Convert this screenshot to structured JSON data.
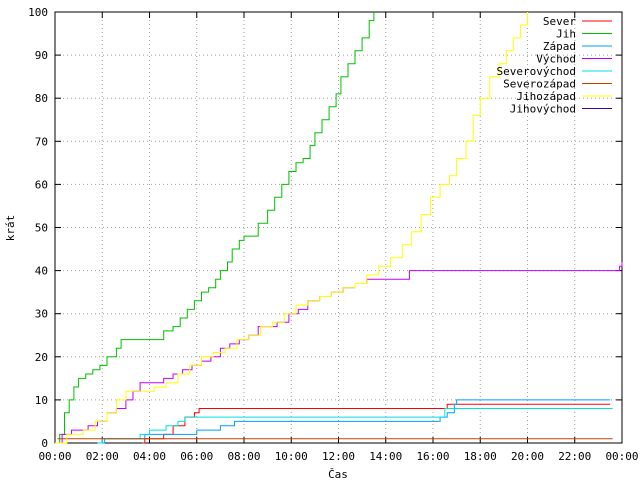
{
  "chart_data": {
    "type": "line",
    "title": "",
    "xlabel": "Čas",
    "ylabel": "krát",
    "xlim": [
      0,
      24
    ],
    "ylim": [
      0,
      100
    ],
    "xticks": [
      "00:00",
      "02:00",
      "04:00",
      "06:00",
      "08:00",
      "10:00",
      "12:00",
      "14:00",
      "16:00",
      "18:00",
      "20:00",
      "22:00",
      "00:00"
    ],
    "yticks": [
      "0",
      "10",
      "20",
      "30",
      "40",
      "50",
      "60",
      "70",
      "80",
      "90",
      "100"
    ],
    "grid": true,
    "legend_position": "top-right",
    "series": [
      {
        "name": "Sever",
        "color": "#ff0000",
        "x": [
          0,
          3.7,
          3.8,
          4.6,
          5.0,
          5.5,
          5.9,
          6.1,
          16.6,
          16.8,
          23.5
        ],
        "y": [
          null,
          0,
          1,
          2,
          4,
          6,
          7,
          8,
          9,
          9,
          9
        ]
      },
      {
        "name": "Jih",
        "color": "#00c000",
        "x": [
          0,
          0.2,
          0.4,
          0.6,
          0.8,
          1.0,
          1.3,
          1.6,
          1.9,
          2.2,
          2.6,
          2.8,
          3.5,
          4.2,
          4.6,
          5.0,
          5.3,
          5.6,
          5.9,
          6.2,
          6.5,
          6.8,
          7.0,
          7.3,
          7.5,
          7.8,
          8.0,
          8.3,
          8.6,
          9.0,
          9.3,
          9.6,
          9.9,
          10.2,
          10.5,
          10.8,
          11.0,
          11.3,
          11.6,
          11.9,
          12.1,
          12.4,
          12.7,
          13.0,
          13.3,
          13.5
        ],
        "y": [
          0,
          2,
          7,
          10,
          13,
          15,
          16,
          17,
          18,
          20,
          22,
          24,
          24,
          24,
          26,
          27,
          29,
          31,
          33,
          35,
          36,
          38,
          40,
          42,
          45,
          47,
          48,
          48,
          51,
          54,
          57,
          60,
          63,
          65,
          66,
          69,
          72,
          75,
          78,
          81,
          85,
          88,
          91,
          94,
          98,
          100
        ]
      },
      {
        "name": "Západ",
        "color": "#00a0ff",
        "x": [
          0,
          2.0,
          2.1,
          3.6,
          3.8,
          5.0,
          6.0,
          7.0,
          7.6,
          16.3,
          16.6,
          16.9,
          17.0,
          23.5
        ],
        "y": [
          null,
          0,
          1,
          1,
          2,
          2,
          3,
          4,
          5,
          6,
          7,
          9,
          10,
          10
        ]
      },
      {
        "name": "Východ",
        "color": "#c000ff",
        "x": [
          0,
          0.3,
          0.7,
          1.4,
          1.8,
          2.2,
          2.6,
          3.0,
          3.3,
          3.6,
          4.2,
          4.6,
          5.0,
          5.4,
          5.8,
          6.2,
          6.6,
          7.0,
          7.4,
          7.8,
          8.2,
          8.6,
          9.0,
          9.4,
          9.9,
          10.3,
          10.7,
          11.2,
          11.7,
          12.2,
          12.7,
          13.2,
          13.8,
          14.4,
          14.9,
          15.0,
          23.8,
          23.9,
          24.0
        ],
        "y": [
          0,
          2,
          3,
          4,
          5,
          7,
          8,
          10,
          12,
          14,
          14,
          15,
          16,
          17,
          18,
          19,
          20,
          22,
          23,
          24,
          25,
          27,
          27,
          28,
          30,
          31,
          33,
          34,
          35,
          36,
          37,
          38,
          38,
          38,
          38,
          40,
          40,
          41,
          42
        ]
      },
      {
        "name": "Severovýchod",
        "color": "#00e0e0",
        "x": [
          0,
          1.8,
          2.0,
          3.3,
          3.6,
          4.0,
          4.7,
          5.2,
          5.5,
          7.6,
          16.5,
          16.9,
          23.6
        ],
        "y": [
          null,
          0,
          1,
          1,
          2,
          3,
          4,
          5,
          6,
          6,
          8,
          8,
          8
        ]
      },
      {
        "name": "Severozápad",
        "color": "#c04000",
        "x": [
          0,
          0.1,
          23.6
        ],
        "y": [
          null,
          1,
          1
        ]
      },
      {
        "name": "Jihozápad",
        "color": "#ffff00",
        "x": [
          0,
          0.5,
          1.2,
          1.7,
          2.2,
          2.6,
          3.0,
          3.5,
          4.2,
          4.7,
          5.2,
          5.7,
          6.2,
          6.7,
          7.2,
          7.7,
          8.2,
          8.7,
          9.2,
          9.7,
          10.2,
          10.7,
          11.2,
          11.7,
          12.2,
          12.7,
          13.2,
          13.7,
          14.2,
          14.7,
          15.1,
          15.5,
          15.9,
          16.3,
          16.7,
          17.0,
          17.4,
          17.7,
          18.0,
          18.4,
          18.8,
          19.1,
          19.4,
          19.7,
          20.0
        ],
        "y": [
          0,
          2,
          3,
          5,
          7,
          10,
          12,
          12,
          13,
          14,
          16,
          18,
          20,
          21,
          22,
          24,
          25,
          27,
          28,
          30,
          32,
          33,
          34,
          35,
          36,
          37,
          39,
          41,
          43,
          46,
          49,
          53,
          57,
          60,
          62,
          66,
          70,
          76,
          80,
          85,
          88,
          91,
          94,
          97,
          100
        ]
      },
      {
        "name": "Jihovýchod",
        "color": "#4000a0",
        "x": [],
        "y": []
      }
    ]
  }
}
